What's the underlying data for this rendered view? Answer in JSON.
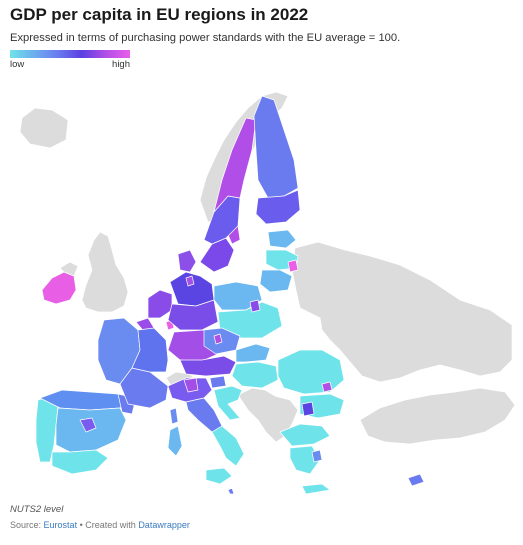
{
  "header": {
    "title": "GDP per capita in EU regions in 2022",
    "subtitle": "Expressed in terms of purchasing power standards with the EU average = 100."
  },
  "legend": {
    "low_label": "low",
    "high_label": "high",
    "colors": [
      "#6ee3ea",
      "#6a7bf0",
      "#5b3fe0",
      "#b24ee8",
      "#e95fe8"
    ]
  },
  "map": {
    "non_eu_color": "#dcdcdc",
    "border_color": "#ffffff"
  },
  "footer": {
    "note": "NUTS2 level",
    "source_prefix": "Source:",
    "source_name": "Eurostat",
    "separator": "•",
    "created_with": "Created with",
    "tool_name": "Datawrapper"
  }
}
